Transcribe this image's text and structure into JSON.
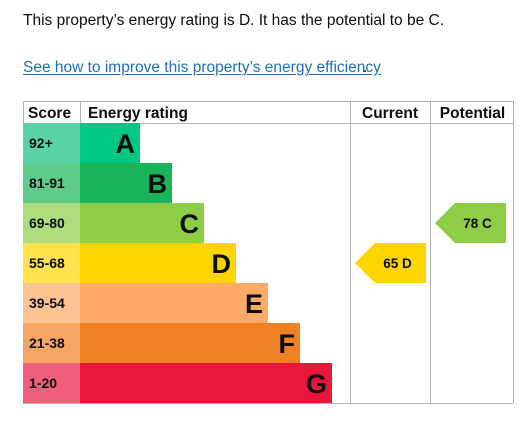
{
  "summary_text": "This property’s energy rating is D. It has the potential to be C.",
  "improve_link": "See how to improve this property’s energy efficiency",
  "improve_link_suffix": ".",
  "chart_data": {
    "type": "bar",
    "headers": {
      "score": "Score",
      "rating": "Energy rating",
      "current": "Current",
      "potential": "Potential"
    },
    "bands": [
      {
        "letter": "A",
        "range": "92+",
        "min": 92,
        "max": 100,
        "color": "#00c781",
        "score_color": "#59d3a5"
      },
      {
        "letter": "B",
        "range": "81-91",
        "min": 81,
        "max": 91,
        "color": "#19b459",
        "score_color": "#5ecb8b"
      },
      {
        "letter": "C",
        "range": "69-80",
        "min": 69,
        "max": 80,
        "color": "#8dce46",
        "score_color": "#afdd7e"
      },
      {
        "letter": "D",
        "range": "55-68",
        "min": 55,
        "max": 68,
        "color": "#ffd500",
        "score_color": "#ffe24d"
      },
      {
        "letter": "E",
        "range": "39-54",
        "min": 39,
        "max": 54,
        "color": "#fcaa65",
        "score_color": "#fdc493"
      },
      {
        "letter": "F",
        "range": "21-38",
        "min": 21,
        "max": 38,
        "color": "#ef8023",
        "score_color": "#f4a665"
      },
      {
        "letter": "G",
        "range": "1-20",
        "min": 1,
        "max": 20,
        "color": "#e9153b",
        "score_color": "#f0607b"
      }
    ],
    "current": {
      "value": 65,
      "letter": "D",
      "label": "65 D"
    },
    "potential": {
      "value": 78,
      "letter": "C",
      "label": "78 C"
    }
  }
}
